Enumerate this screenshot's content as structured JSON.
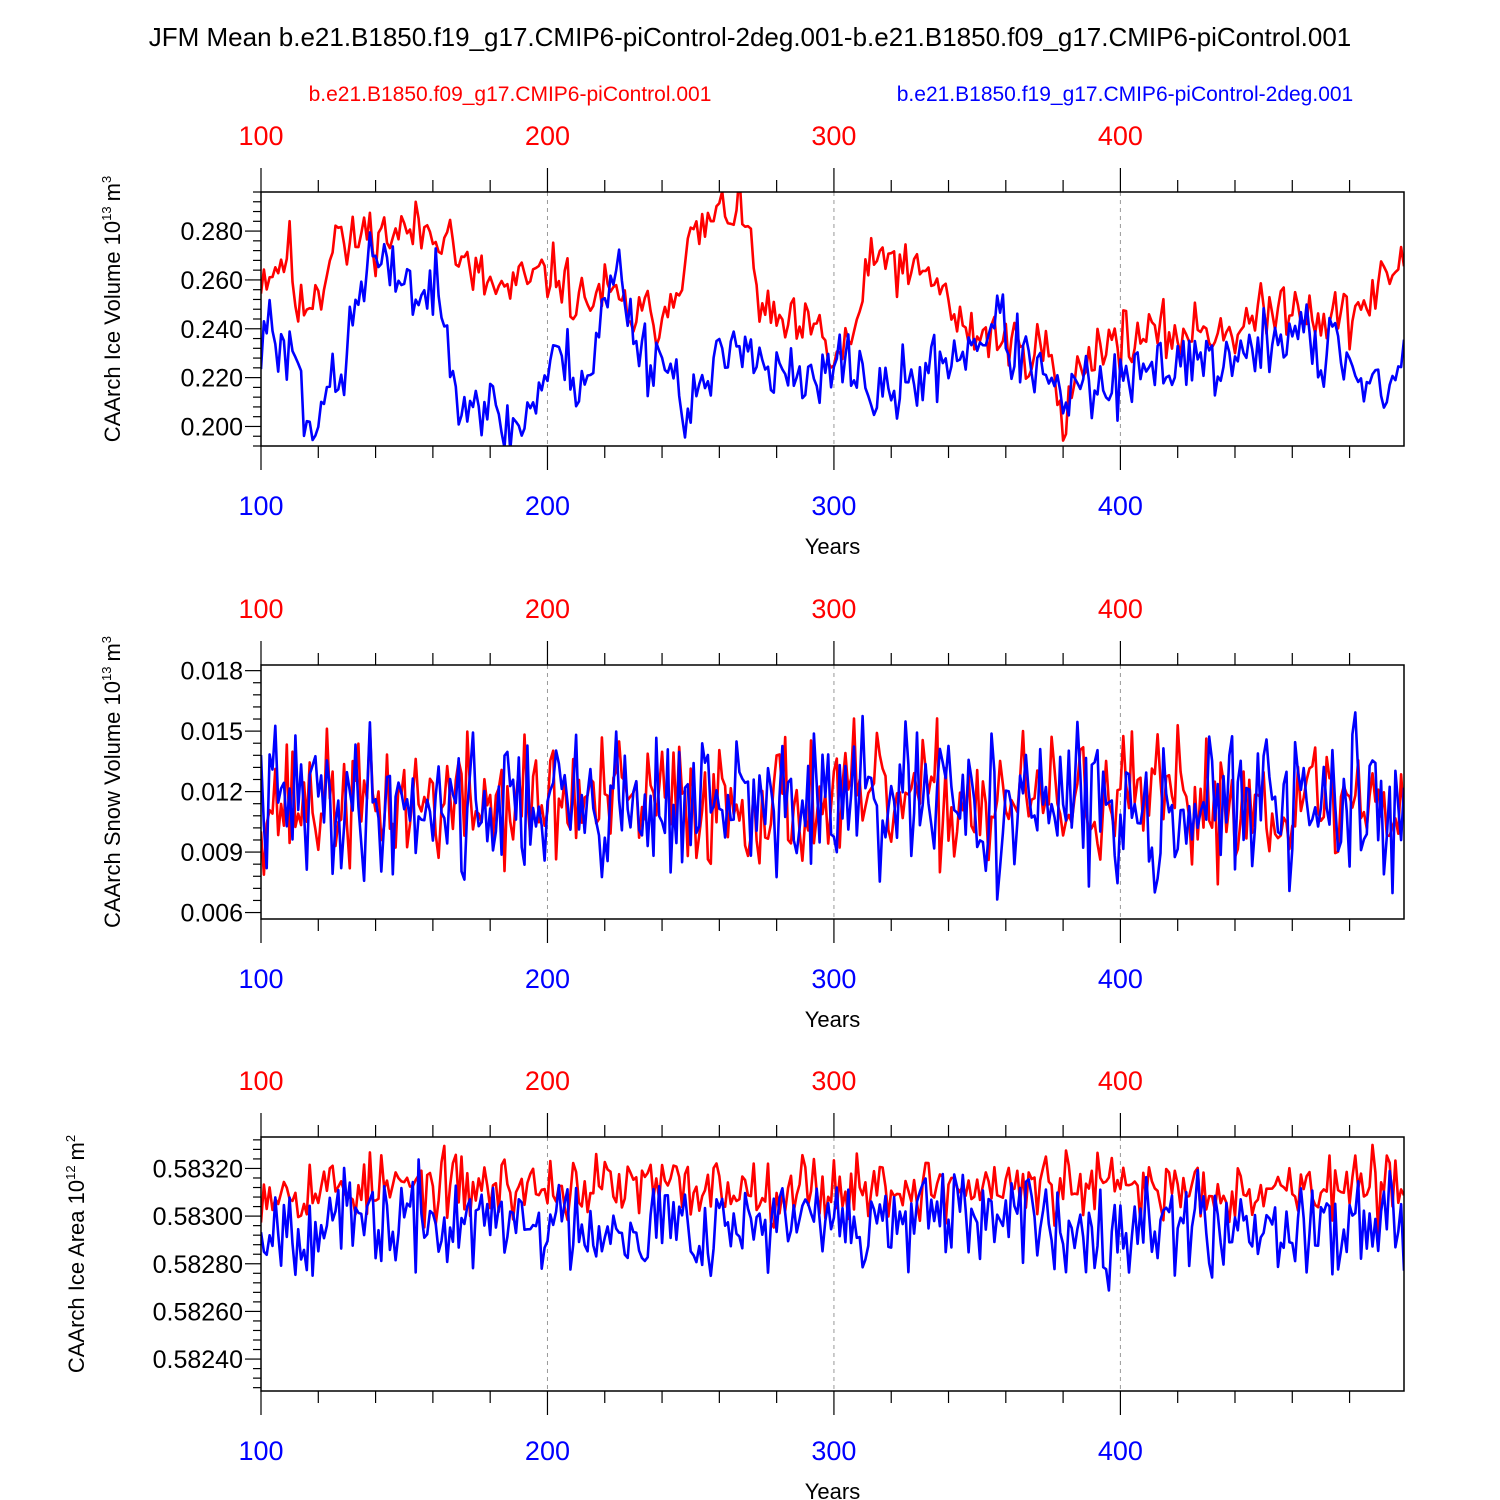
{
  "title": "JFM Mean b.e21.B1850.f19_g17.CMIP6-piControl-2deg.001-b.e21.B1850.f09_g17.CMIP6-piControl.001",
  "legend": {
    "red": "b.e21.B1850.f09_g17.CMIP6-piControl.001",
    "blue": "b.e21.B1850.f19_g17.CMIP6-piControl-2deg.001"
  },
  "colors": {
    "red": "#ff0000",
    "blue": "#0000ff",
    "axis": "#000000",
    "grid": "#999999"
  },
  "chart_data": [
    {
      "type": "line",
      "ylabel": "CAArch Ice Volume 10",
      "ylabel_exp": "13",
      "ylabel_unit": "m",
      "ylabel_unit_exp": "3",
      "xlabel": "Years",
      "xlim": [
        100,
        499
      ],
      "ylim": [
        0.192,
        0.296
      ],
      "ytick_values": [
        0.2,
        0.22,
        0.24,
        0.26,
        0.28
      ],
      "ytick_labels": [
        "0.200",
        "0.220",
        "0.240",
        "0.260",
        "0.280"
      ],
      "xtick_values": [
        100,
        200,
        300,
        400
      ],
      "xtick_labels": [
        "100",
        "200",
        "300",
        "400"
      ],
      "series": [
        {
          "name": "b.e21.B1850.f09_g17.CMIP6-piControl.001",
          "color": "red",
          "knots": [
            [
              100,
              0.262
            ],
            [
              105,
              0.265
            ],
            [
              110,
              0.272
            ],
            [
              113,
              0.245
            ],
            [
              118,
              0.255
            ],
            [
              122,
              0.258
            ],
            [
              126,
              0.285
            ],
            [
              130,
              0.27
            ],
            [
              135,
              0.28
            ],
            [
              140,
              0.278
            ],
            [
              150,
              0.28
            ],
            [
              160,
              0.28
            ],
            [
              165,
              0.282
            ],
            [
              170,
              0.265
            ],
            [
              180,
              0.258
            ],
            [
              185,
              0.255
            ],
            [
              190,
              0.258
            ],
            [
              200,
              0.262
            ],
            [
              205,
              0.262
            ],
            [
              210,
              0.25
            ],
            [
              220,
              0.255
            ],
            [
              230,
              0.245
            ],
            [
              240,
              0.245
            ],
            [
              245,
              0.26
            ],
            [
              250,
              0.275
            ],
            [
              258,
              0.285
            ],
            [
              265,
              0.29
            ],
            [
              270,
              0.28
            ],
            [
              275,
              0.245
            ],
            [
              285,
              0.24
            ],
            [
              295,
              0.238
            ],
            [
              300,
              0.226
            ],
            [
              306,
              0.235
            ],
            [
              312,
              0.262
            ],
            [
              318,
              0.272
            ],
            [
              325,
              0.262
            ],
            [
              335,
              0.262
            ],
            [
              340,
              0.25
            ],
            [
              345,
              0.238
            ],
            [
              355,
              0.238
            ],
            [
              365,
              0.232
            ],
            [
              375,
              0.232
            ],
            [
              380,
              0.195
            ],
            [
              383,
              0.218
            ],
            [
              390,
              0.232
            ],
            [
              400,
              0.236
            ],
            [
              410,
              0.236
            ],
            [
              420,
              0.238
            ],
            [
              430,
              0.24
            ],
            [
              440,
              0.24
            ],
            [
              450,
              0.245
            ],
            [
              460,
              0.252
            ],
            [
              470,
              0.245
            ],
            [
              480,
              0.245
            ],
            [
              490,
              0.255
            ],
            [
              497,
              0.268
            ],
            [
              499,
              0.265
            ]
          ],
          "noise": 0.006,
          "seed": 11
        },
        {
          "name": "b.e21.B1850.f19_g17.CMIP6-piControl-2deg.001",
          "color": "blue",
          "knots": [
            [
              100,
              0.228
            ],
            [
              103,
              0.25
            ],
            [
              107,
              0.228
            ],
            [
              112,
              0.235
            ],
            [
              115,
              0.205
            ],
            [
              118,
              0.202
            ],
            [
              122,
              0.215
            ],
            [
              128,
              0.215
            ],
            [
              132,
              0.245
            ],
            [
              138,
              0.27
            ],
            [
              145,
              0.26
            ],
            [
              150,
              0.265
            ],
            [
              155,
              0.25
            ],
            [
              160,
              0.258
            ],
            [
              165,
              0.235
            ],
            [
              170,
              0.215
            ],
            [
              178,
              0.21
            ],
            [
              185,
              0.2
            ],
            [
              190,
              0.2
            ],
            [
              195,
              0.21
            ],
            [
              200,
              0.222
            ],
            [
              205,
              0.23
            ],
            [
              210,
              0.22
            ],
            [
              215,
              0.222
            ],
            [
              220,
              0.25
            ],
            [
              225,
              0.265
            ],
            [
              230,
              0.24
            ],
            [
              235,
              0.228
            ],
            [
              240,
              0.23
            ],
            [
              248,
              0.21
            ],
            [
              255,
              0.215
            ],
            [
              262,
              0.228
            ],
            [
              268,
              0.24
            ],
            [
              272,
              0.232
            ],
            [
              278,
              0.22
            ],
            [
              285,
              0.22
            ],
            [
              290,
              0.215
            ],
            [
              300,
              0.222
            ],
            [
              305,
              0.23
            ],
            [
              315,
              0.21
            ],
            [
              322,
              0.215
            ],
            [
              330,
              0.22
            ],
            [
              340,
              0.228
            ],
            [
              350,
              0.235
            ],
            [
              357,
              0.245
            ],
            [
              362,
              0.232
            ],
            [
              370,
              0.225
            ],
            [
              378,
              0.21
            ],
            [
              385,
              0.215
            ],
            [
              395,
              0.215
            ],
            [
              405,
              0.218
            ],
            [
              415,
              0.225
            ],
            [
              425,
              0.23
            ],
            [
              435,
              0.225
            ],
            [
              445,
              0.228
            ],
            [
              455,
              0.238
            ],
            [
              465,
              0.24
            ],
            [
              470,
              0.22
            ],
            [
              475,
              0.238
            ],
            [
              480,
              0.225
            ],
            [
              485,
              0.22
            ],
            [
              495,
              0.215
            ],
            [
              499,
              0.228
            ]
          ],
          "noise": 0.007,
          "seed": 23
        }
      ]
    },
    {
      "type": "line",
      "ylabel": "CAArch Snow Volume 10",
      "ylabel_exp": "13",
      "ylabel_unit": "m",
      "ylabel_unit_exp": "3",
      "xlabel": "Years",
      "xlim": [
        100,
        499
      ],
      "ylim": [
        0.00568,
        0.01828
      ],
      "ytick_values": [
        0.006,
        0.009,
        0.012,
        0.015,
        0.018
      ],
      "ytick_labels": [
        "0.006",
        "0.009",
        "0.012",
        "0.015",
        "0.018"
      ],
      "xtick_values": [
        100,
        200,
        300,
        400
      ],
      "xtick_labels": [
        "100",
        "200",
        "300",
        "400"
      ],
      "series": [
        {
          "name": "b.e21.B1850.f09_g17.CMIP6-piControl.001",
          "color": "red",
          "knots": [
            [
              100,
              0.0115
            ],
            [
              499,
              0.0115
            ]
          ],
          "noise": 0.0016,
          "seed": 37
        },
        {
          "name": "b.e21.B1850.f19_g17.CMIP6-piControl-2deg.001",
          "color": "blue",
          "knots": [
            [
              100,
              0.0115
            ],
            [
              499,
              0.0112
            ]
          ],
          "noise": 0.0018,
          "seed": 41
        }
      ]
    },
    {
      "type": "line",
      "ylabel": "CAArch Ice Area 10",
      "ylabel_exp": "12",
      "ylabel_unit": "m",
      "ylabel_unit_exp": "2",
      "xlabel": "Years",
      "xlim": [
        100,
        499
      ],
      "ylim": [
        0.582266,
        0.583332
      ],
      "ytick_values": [
        0.5824,
        0.5826,
        0.5828,
        0.583,
        0.5832
      ],
      "ytick_labels": [
        "0.58240",
        "0.58260",
        "0.58280",
        "0.58300",
        "0.58320"
      ],
      "xtick_values": [
        100,
        200,
        300,
        400
      ],
      "xtick_labels": [
        "100",
        "200",
        "300",
        "400"
      ],
      "series": [
        {
          "name": "b.e21.B1850.f09_g17.CMIP6-piControl.001",
          "color": "red",
          "knots": [
            [
              100,
              0.58312
            ],
            [
              499,
              0.58312
            ]
          ],
          "noise": 7e-05,
          "seed": 53,
          "clip_top": 0.58333
        },
        {
          "name": "b.e21.B1850.f19_g17.CMIP6-piControl-2deg.001",
          "color": "blue",
          "knots": [
            [
              100,
              0.58297
            ],
            [
              499,
              0.58297
            ]
          ],
          "noise": 0.0001,
          "seed": 67,
          "clip_top": 0.58333
        }
      ]
    }
  ]
}
